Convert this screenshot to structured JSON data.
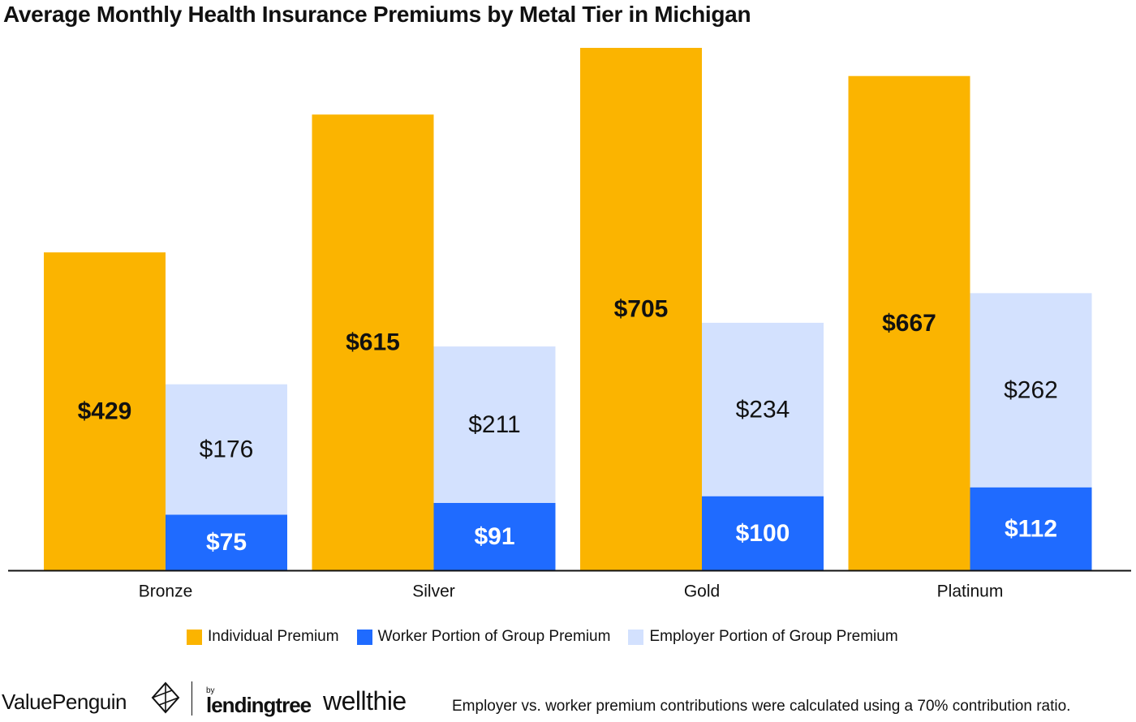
{
  "title": "Average Monthly Health Insurance Premiums by Metal Tier in Michigan",
  "colors": {
    "individual": "#FBB400",
    "worker": "#1F6BFF",
    "employer": "#D3E1FE",
    "axis": "#111111"
  },
  "legend": {
    "individual": "Individual Premium",
    "worker": "Worker Portion of Group Premium",
    "employer": "Employer Portion of Group Premium"
  },
  "footer": {
    "logo_valuepenguin": "ValuePenguin",
    "logo_by": "by",
    "logo_lendingtree": "lendingtree",
    "logo_wellthie": "wellthie",
    "note": "Employer vs. worker premium contributions were calculated using a 70% contribution ratio."
  },
  "chart_data": {
    "type": "bar",
    "title": "Average Monthly Health Insurance Premiums by Metal Tier in Michigan",
    "categories": [
      "Bronze",
      "Silver",
      "Gold",
      "Platinum"
    ],
    "series": [
      {
        "name": "Individual Premium",
        "values": [
          429,
          615,
          705,
          667
        ],
        "labels": [
          "$429",
          "$615",
          "$705",
          "$667"
        ]
      },
      {
        "name": "Worker Portion of Group Premium",
        "values": [
          75,
          91,
          100,
          112
        ],
        "labels": [
          "$75",
          "$91",
          "$100",
          "$112"
        ]
      },
      {
        "name": "Employer Portion of Group Premium",
        "values": [
          176,
          211,
          234,
          262
        ],
        "labels": [
          "$176",
          "$211",
          "$234",
          "$262"
        ]
      }
    ],
    "layout": "individual bar beside a stacked group bar (worker portion at bottom, employer portion on top)",
    "ylim": [
      0,
      705
    ],
    "grid": false,
    "legend_position": "bottom"
  }
}
